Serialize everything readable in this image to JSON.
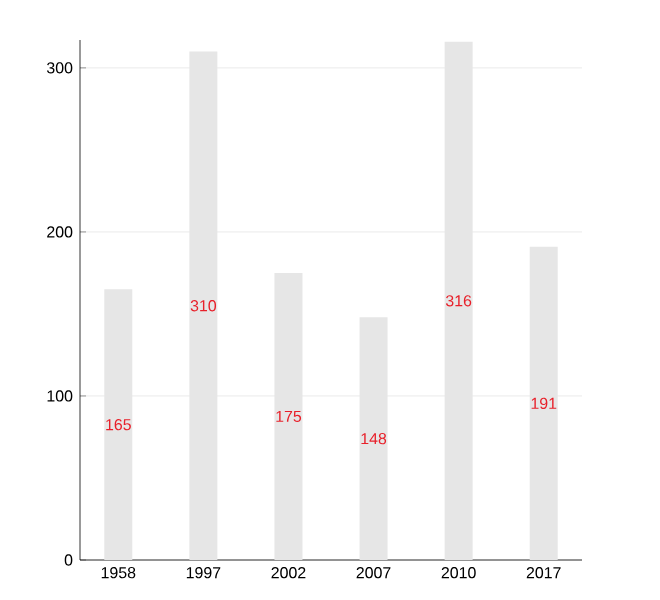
{
  "chart_data": {
    "type": "bar",
    "categories": [
      "1958",
      "1997",
      "2002",
      "2007",
      "2010",
      "2017"
    ],
    "values": [
      165,
      310,
      175,
      148,
      316,
      191
    ],
    "color": "#e6e6e6",
    "ylim": [
      0,
      317
    ],
    "yticks": [
      0,
      100,
      200,
      300
    ],
    "grid": "y",
    "data_labels": true
  }
}
